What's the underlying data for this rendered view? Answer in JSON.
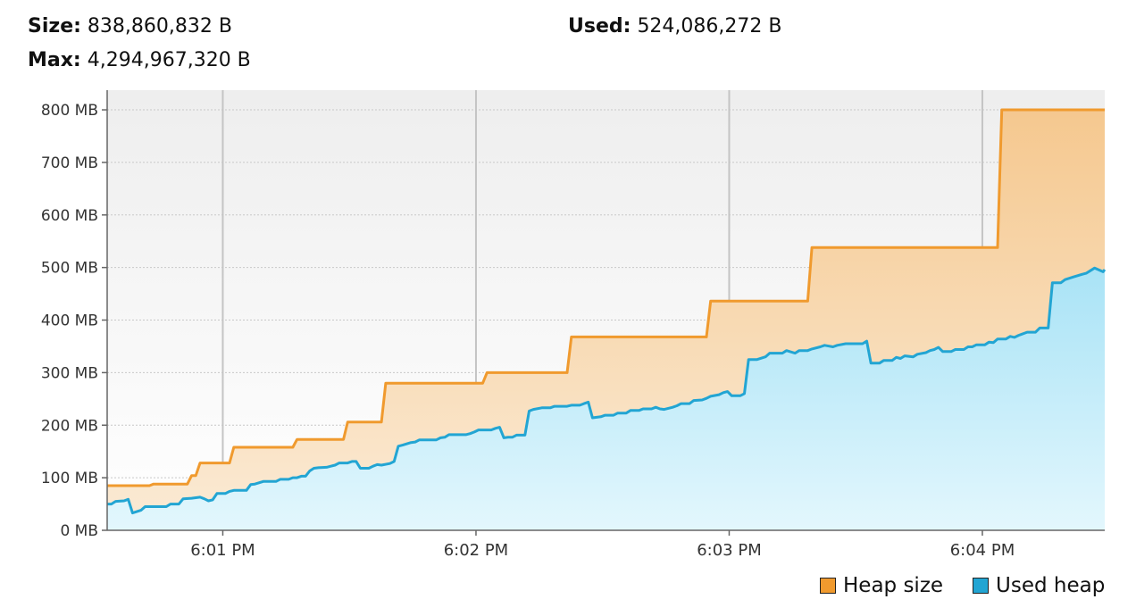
{
  "stats": {
    "size_label": "Size:",
    "size_value": "838,860,832 B",
    "used_label": "Used:",
    "used_value": "524,086,272 B",
    "max_label": "Max:",
    "max_value": "4,294,967,320 B"
  },
  "colors": {
    "heap_line": "#F09A2E",
    "heap_fill": "#F7D9AE",
    "used_line": "#22A5D3",
    "used_fill": "#BDEBF8",
    "plot_bg": "#F3F3F3",
    "grid": "#CCCCCC"
  },
  "chart_data": {
    "type": "area",
    "y_ticks": [
      "0 MB",
      "100 MB",
      "200 MB",
      "300 MB",
      "400 MB",
      "500 MB",
      "600 MB",
      "700 MB",
      "800 MB"
    ],
    "ylim": [
      0,
      850
    ],
    "y_unit": "MB",
    "x_ticks": [
      {
        "label": "6:01 PM",
        "t": 60
      },
      {
        "label": "6:02 PM",
        "t": 120
      },
      {
        "label": "6:03 PM",
        "t": 180
      },
      {
        "label": "6:04 PM",
        "t": 240
      }
    ],
    "xlim": [
      32.6,
      269
    ],
    "grid": true,
    "legend": "bottom-right",
    "series": [
      {
        "name": "Heap size",
        "points": [
          [
            32.6,
            85
          ],
          [
            42.6,
            85
          ],
          [
            43.6,
            88
          ],
          [
            51.6,
            88
          ],
          [
            52.6,
            104
          ],
          [
            53.6,
            104
          ],
          [
            54.6,
            128
          ],
          [
            61.6,
            128
          ],
          [
            62.6,
            158
          ],
          [
            76.6,
            158
          ],
          [
            77.6,
            173
          ],
          [
            88.6,
            173
          ],
          [
            89.6,
            206
          ],
          [
            97.6,
            206
          ],
          [
            98.6,
            280
          ],
          [
            121.6,
            280
          ],
          [
            122.6,
            300
          ],
          [
            141.6,
            300
          ],
          [
            142.6,
            368
          ],
          [
            174.6,
            368
          ],
          [
            175.6,
            436
          ],
          [
            198.6,
            436
          ],
          [
            199.6,
            538
          ],
          [
            243.6,
            538
          ],
          [
            244.6,
            800
          ],
          [
            269,
            800
          ]
        ]
      },
      {
        "name": "Used heap",
        "points": [
          [
            32.6,
            50
          ],
          [
            33.6,
            50
          ],
          [
            34.6,
            55
          ],
          [
            36.6,
            56
          ],
          [
            37.6,
            59
          ],
          [
            38.6,
            33
          ],
          [
            40.6,
            38
          ],
          [
            41.6,
            45
          ],
          [
            46.6,
            45
          ],
          [
            47.6,
            50
          ],
          [
            49.6,
            50
          ],
          [
            50.6,
            60
          ],
          [
            52.6,
            61
          ],
          [
            54.6,
            63
          ],
          [
            55.6,
            60
          ],
          [
            56.6,
            56
          ],
          [
            57.6,
            58
          ],
          [
            58.6,
            70
          ],
          [
            60.6,
            70
          ],
          [
            61.6,
            74
          ],
          [
            62.6,
            76
          ],
          [
            65.6,
            76
          ],
          [
            66.6,
            87
          ],
          [
            67.6,
            88
          ],
          [
            69.6,
            93
          ],
          [
            72.6,
            93
          ],
          [
            73.6,
            97
          ],
          [
            75.6,
            97
          ],
          [
            76.6,
            100
          ],
          [
            77.6,
            100
          ],
          [
            78.6,
            103
          ],
          [
            79.6,
            103
          ],
          [
            80.6,
            113
          ],
          [
            81.6,
            118
          ],
          [
            82.6,
            119
          ],
          [
            84.6,
            120
          ],
          [
            85.6,
            122
          ],
          [
            86.6,
            124
          ],
          [
            87.6,
            128
          ],
          [
            89.6,
            128
          ],
          [
            90.6,
            131
          ],
          [
            91.6,
            131
          ],
          [
            92.6,
            118
          ],
          [
            94.6,
            118
          ],
          [
            95.6,
            122
          ],
          [
            96.6,
            125
          ],
          [
            97.6,
            124
          ],
          [
            99.6,
            127
          ],
          [
            100.6,
            131
          ],
          [
            101.6,
            160
          ],
          [
            102.6,
            162
          ],
          [
            104.6,
            167
          ],
          [
            105.6,
            168
          ],
          [
            106.6,
            172
          ],
          [
            110.6,
            172
          ],
          [
            111.6,
            176
          ],
          [
            112.6,
            177
          ],
          [
            113.6,
            182
          ],
          [
            117.6,
            182
          ],
          [
            118.6,
            184
          ],
          [
            119.6,
            187
          ],
          [
            120.6,
            191
          ],
          [
            123.6,
            191
          ],
          [
            124.6,
            194
          ],
          [
            125.6,
            196
          ],
          [
            126.6,
            176
          ],
          [
            127.6,
            177
          ],
          [
            128.6,
            177
          ],
          [
            129.6,
            181
          ],
          [
            131.6,
            181
          ],
          [
            132.6,
            227
          ],
          [
            133.6,
            230
          ],
          [
            135.6,
            233
          ],
          [
            137.6,
            233
          ],
          [
            138.6,
            236
          ],
          [
            141.6,
            236
          ],
          [
            142.6,
            238
          ],
          [
            144.6,
            238
          ],
          [
            145.6,
            241
          ],
          [
            146.6,
            244
          ],
          [
            147.6,
            214
          ],
          [
            149.6,
            216
          ],
          [
            150.6,
            219
          ],
          [
            152.6,
            219
          ],
          [
            153.6,
            223
          ],
          [
            155.6,
            223
          ],
          [
            156.6,
            228
          ],
          [
            158.6,
            228
          ],
          [
            159.6,
            231
          ],
          [
            161.6,
            231
          ],
          [
            162.6,
            234
          ],
          [
            163.6,
            231
          ],
          [
            164.6,
            230
          ],
          [
            166.6,
            234
          ],
          [
            167.6,
            237
          ],
          [
            168.6,
            241
          ],
          [
            170.6,
            241
          ],
          [
            171.6,
            247
          ],
          [
            173.6,
            248
          ],
          [
            174.6,
            251
          ],
          [
            175.6,
            255
          ],
          [
            177.6,
            258
          ],
          [
            178.6,
            262
          ],
          [
            179.6,
            264
          ],
          [
            180.6,
            256
          ],
          [
            182.6,
            256
          ],
          [
            183.6,
            260
          ],
          [
            184.6,
            325
          ],
          [
            186.6,
            325
          ],
          [
            188.6,
            330
          ],
          [
            189.6,
            337
          ],
          [
            192.6,
            337
          ],
          [
            193.6,
            342
          ],
          [
            195.6,
            337
          ],
          [
            196.6,
            342
          ],
          [
            198.6,
            342
          ],
          [
            199.6,
            345
          ],
          [
            201.6,
            349
          ],
          [
            202.6,
            352
          ],
          [
            204.6,
            349
          ],
          [
            205.6,
            352
          ],
          [
            207.6,
            355
          ],
          [
            211.6,
            355
          ],
          [
            212.6,
            360
          ],
          [
            213.6,
            318
          ],
          [
            215.6,
            318
          ],
          [
            216.6,
            323
          ],
          [
            218.6,
            323
          ],
          [
            219.6,
            329
          ],
          [
            220.6,
            327
          ],
          [
            221.6,
            332
          ],
          [
            223.6,
            330
          ],
          [
            224.6,
            335
          ],
          [
            226.6,
            338
          ],
          [
            227.6,
            342
          ],
          [
            228.6,
            344
          ],
          [
            229.6,
            348
          ],
          [
            230.6,
            340
          ],
          [
            232.6,
            340
          ],
          [
            233.6,
            344
          ],
          [
            235.6,
            344
          ],
          [
            236.6,
            349
          ],
          [
            237.6,
            349
          ],
          [
            238.6,
            353
          ],
          [
            240.6,
            353
          ],
          [
            241.6,
            358
          ],
          [
            242.6,
            357
          ],
          [
            243.6,
            364
          ],
          [
            245.6,
            364
          ],
          [
            246.6,
            369
          ],
          [
            247.6,
            367
          ],
          [
            248.6,
            371
          ],
          [
            250.6,
            377
          ],
          [
            252.6,
            377
          ],
          [
            253.6,
            385
          ],
          [
            255.6,
            385
          ],
          [
            256.6,
            471
          ],
          [
            258.6,
            471
          ],
          [
            259.6,
            477
          ],
          [
            261.6,
            482
          ],
          [
            263.6,
            487
          ],
          [
            264.6,
            489
          ],
          [
            265.6,
            494
          ],
          [
            266.6,
            499
          ],
          [
            268.6,
            492
          ],
          [
            269,
            496
          ]
        ]
      }
    ]
  },
  "legend": {
    "heap_label": "Heap size",
    "used_label": "Used heap"
  }
}
